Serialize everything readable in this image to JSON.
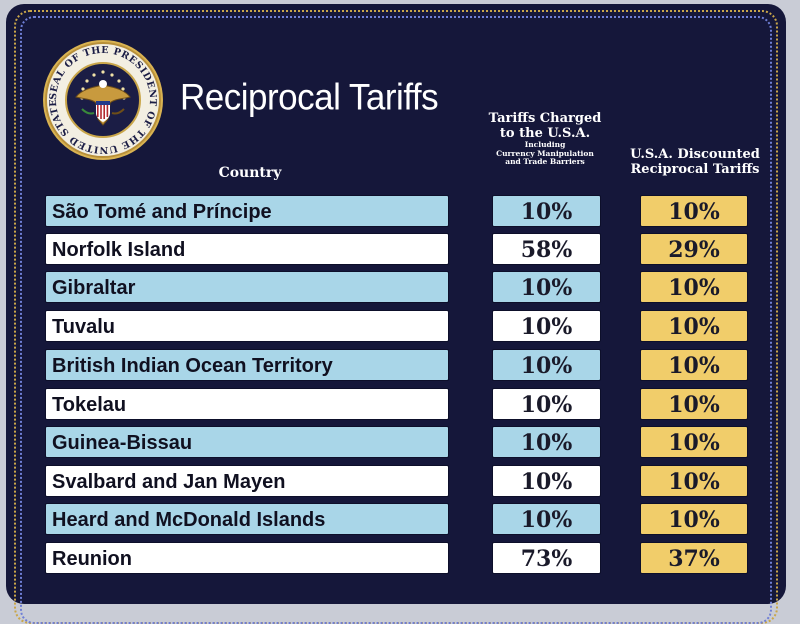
{
  "header": {
    "title": "Reciprocal Tariffs",
    "seal_text": "SEAL OF THE PRESIDENT OF THE UNITED STATES",
    "col_country": "Country",
    "col_charged_line1": "Tariffs Charged",
    "col_charged_line2": "to the U.S.A.",
    "col_charged_note1": "Including",
    "col_charged_note2": "Currency Manipulation",
    "col_charged_note3": "and Trade Barriers",
    "col_discount_line1": "U.S.A. Discounted",
    "col_discount_line2": "Reciprocal Tariffs"
  },
  "colors": {
    "background": "#15173a",
    "row_blue": "#a9d6e8",
    "row_white": "#ffffff",
    "discount_gold": "#f1cd6a"
  },
  "rows": [
    {
      "country": "São Tomé and Príncipe",
      "charged": "10%",
      "discounted": "10%"
    },
    {
      "country": "Norfolk Island",
      "charged": "58%",
      "discounted": "29%"
    },
    {
      "country": "Gibraltar",
      "charged": "10%",
      "discounted": "10%"
    },
    {
      "country": "Tuvalu",
      "charged": "10%",
      "discounted": "10%"
    },
    {
      "country": "British Indian Ocean Territory",
      "charged": "10%",
      "discounted": "10%"
    },
    {
      "country": "Tokelau",
      "charged": "10%",
      "discounted": "10%"
    },
    {
      "country": "Guinea-Bissau",
      "charged": "10%",
      "discounted": "10%"
    },
    {
      "country": "Svalbard and Jan Mayen",
      "charged": "10%",
      "discounted": "10%"
    },
    {
      "country": "Heard and McDonald Islands",
      "charged": "10%",
      "discounted": "10%"
    },
    {
      "country": "Reunion",
      "charged": "73%",
      "discounted": "37%"
    }
  ]
}
